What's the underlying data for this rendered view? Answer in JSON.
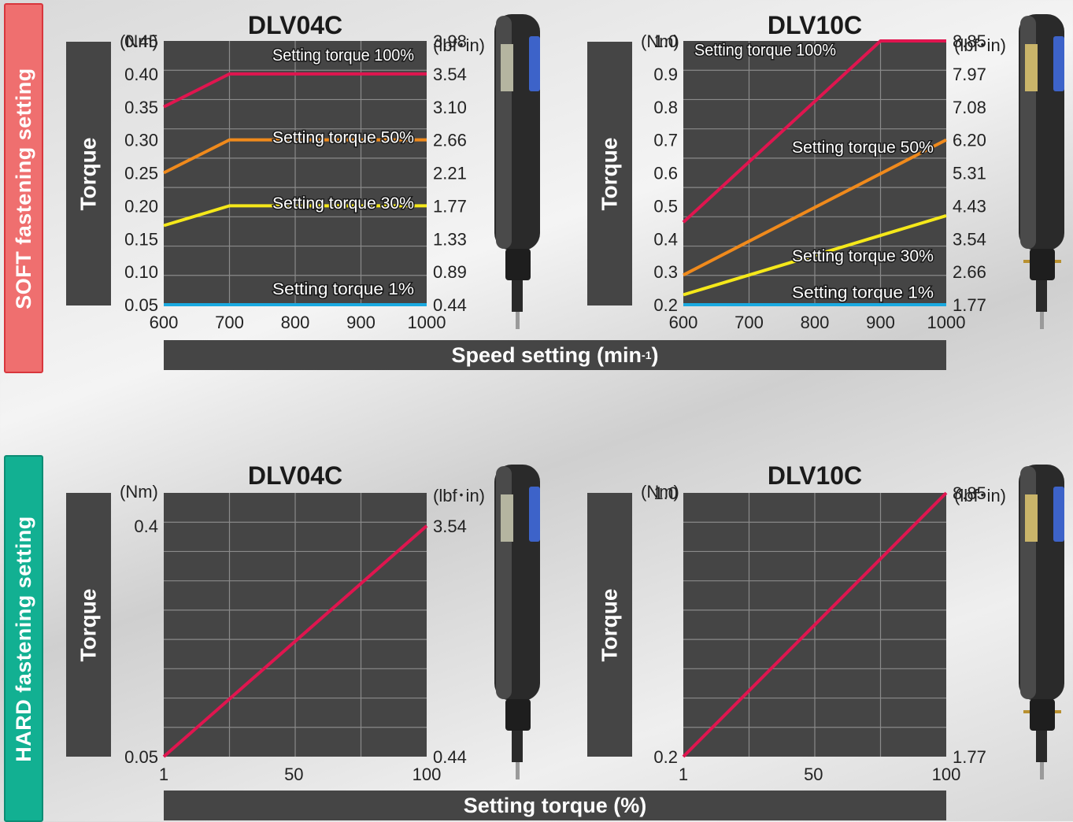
{
  "sections": {
    "soft_label": "SOFT fastening setting",
    "hard_label": "HARD fastening setting",
    "soft_xaxis": "Speed setting (min",
    "soft_xaxis_sup": "-1",
    "soft_xaxis_close": ")",
    "hard_xaxis": "Setting torque (%)"
  },
  "common": {
    "torque_label": "Torque",
    "unit_left": "(Nm)",
    "unit_right": "(lbf･in)"
  },
  "colors": {
    "bg": "#454545",
    "grid": "#8a8a8a",
    "t100": "#e0154f",
    "t50": "#f08a1c",
    "t30": "#f5e81a",
    "t1": "#1aa9e0"
  },
  "chart_data": [
    {
      "type": "line",
      "title": "DLV04C",
      "xlabel": "Speed setting (min-1)",
      "ylabel": "Torque",
      "x_ticks": [
        600,
        700,
        800,
        900,
        1000
      ],
      "xlim": [
        600,
        1000
      ],
      "y_ticks": [
        "0.45",
        "0.40",
        "0.35",
        "0.30",
        "0.25",
        "0.20",
        "0.15",
        "0.10",
        "0.05"
      ],
      "ylim": [
        0.05,
        0.45
      ],
      "y2_ticks": [
        "3.98",
        "3.54",
        "3.10",
        "2.66",
        "2.21",
        "1.77",
        "1.33",
        "0.89",
        "0.44"
      ],
      "series": [
        {
          "name": "Setting torque 100%",
          "color": "#e0154f",
          "x": [
            600,
            700,
            1000
          ],
          "y": [
            0.35,
            0.4,
            0.4
          ]
        },
        {
          "name": "Setting torque 50%",
          "color": "#f08a1c",
          "x": [
            600,
            700,
            1000
          ],
          "y": [
            0.25,
            0.3,
            0.3
          ]
        },
        {
          "name": "Setting torque 30%",
          "color": "#f5e81a",
          "x": [
            600,
            700,
            1000
          ],
          "y": [
            0.17,
            0.2,
            0.2
          ]
        },
        {
          "name": "Setting torque 1%",
          "color": "#1aa9e0",
          "x": [
            600,
            1000
          ],
          "y": [
            0.05,
            0.05
          ]
        }
      ],
      "grid": true
    },
    {
      "type": "line",
      "title": "DLV10C",
      "xlabel": "Speed setting (min-1)",
      "ylabel": "Torque",
      "x_ticks": [
        600,
        700,
        800,
        900,
        1000
      ],
      "xlim": [
        600,
        1000
      ],
      "y_ticks": [
        "1.0",
        "0.9",
        "0.8",
        "0.7",
        "0.6",
        "0.5",
        "0.4",
        "0.3",
        "0.2"
      ],
      "ylim": [
        0.2,
        1.0
      ],
      "y2_ticks": [
        "8.85",
        "7.97",
        "7.08",
        "6.20",
        "5.31",
        "4.43",
        "3.54",
        "2.66",
        "1.77"
      ],
      "series": [
        {
          "name": "Setting torque 100%",
          "color": "#e0154f",
          "x": [
            600,
            900,
            1000
          ],
          "y": [
            0.45,
            1.0,
            1.0
          ]
        },
        {
          "name": "Setting torque 50%",
          "color": "#f08a1c",
          "x": [
            600,
            1000
          ],
          "y": [
            0.29,
            0.7
          ]
        },
        {
          "name": "Setting torque 30%",
          "color": "#f5e81a",
          "x": [
            600,
            1000
          ],
          "y": [
            0.23,
            0.47
          ]
        },
        {
          "name": "Setting torque 1%",
          "color": "#1aa9e0",
          "x": [
            600,
            1000
          ],
          "y": [
            0.2,
            0.2
          ]
        }
      ],
      "grid": true
    },
    {
      "type": "line",
      "title": "DLV04C",
      "xlabel": "Setting torque (%)",
      "ylabel": "Torque",
      "x_ticks": [
        1,
        50,
        100
      ],
      "xlim": [
        1,
        100
      ],
      "y_ticks": [
        "0.4",
        "0.05"
      ],
      "ylim": [
        0.05,
        0.45
      ],
      "y2_ticks": [
        "3.54",
        "0.44"
      ],
      "series": [
        {
          "name": "",
          "color": "#e0154f",
          "x": [
            1,
            100
          ],
          "y": [
            0.05,
            0.4
          ]
        }
      ],
      "grid": true
    },
    {
      "type": "line",
      "title": "DLV10C",
      "xlabel": "Setting torque (%)",
      "ylabel": "Torque",
      "x_ticks": [
        1,
        50,
        100
      ],
      "xlim": [
        1,
        100
      ],
      "y_ticks": [
        "1.0",
        "0.2"
      ],
      "ylim": [
        0.2,
        1.0
      ],
      "y2_ticks": [
        "8.85",
        "1.77"
      ],
      "series": [
        {
          "name": "",
          "color": "#e0154f",
          "x": [
            1,
            100
          ],
          "y": [
            0.2,
            1.0
          ]
        }
      ],
      "grid": true
    }
  ]
}
